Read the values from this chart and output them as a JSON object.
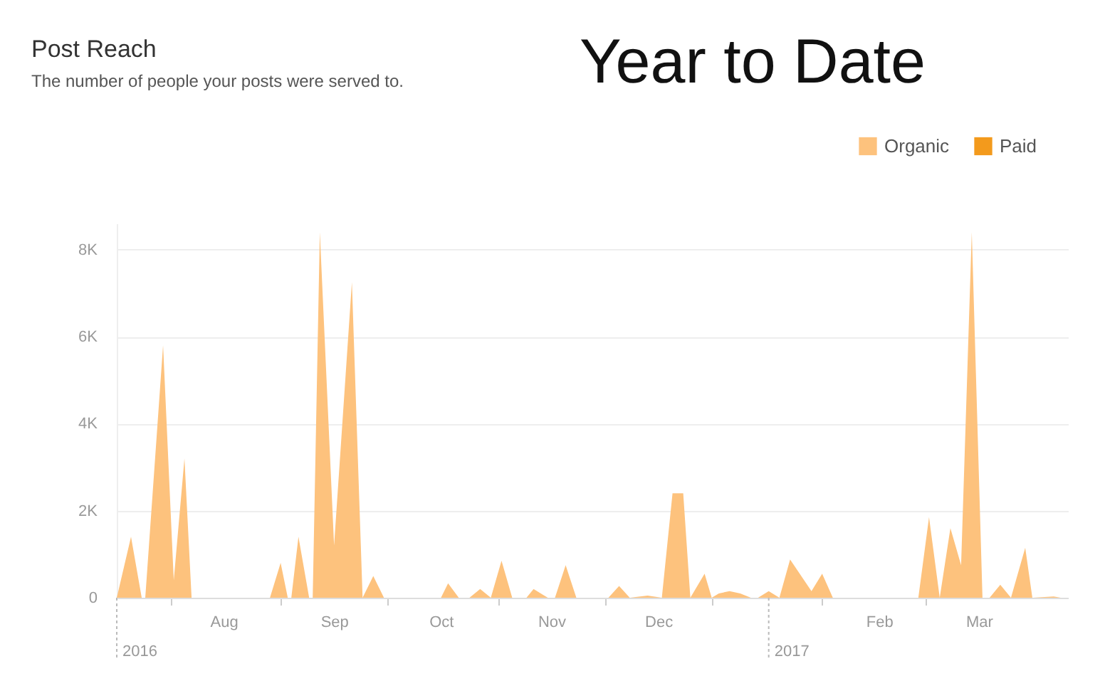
{
  "chart_data": {
    "type": "area",
    "title": "Post Reach",
    "subtitle": "The number of people your posts were served to.",
    "annotations": [
      "Year to Date"
    ],
    "x": [
      "2016-07-02",
      "2016-07-06",
      "2016-07-09",
      "2016-07-10",
      "2016-07-15",
      "2016-07-18",
      "2016-07-21",
      "2016-07-23",
      "2016-08-14",
      "2016-08-17",
      "2016-08-19",
      "2016-08-20",
      "2016-08-22",
      "2016-08-25",
      "2016-08-26",
      "2016-08-28",
      "2016-09-01",
      "2016-09-06",
      "2016-09-09",
      "2016-09-12",
      "2016-09-15",
      "2016-10-01",
      "2016-10-03",
      "2016-10-06",
      "2016-10-09",
      "2016-10-12",
      "2016-10-15",
      "2016-10-18",
      "2016-10-21",
      "2016-10-25",
      "2016-10-27",
      "2016-10-31",
      "2016-11-02",
      "2016-11-05",
      "2016-11-08",
      "2016-11-17",
      "2016-11-20",
      "2016-11-23",
      "2016-11-28",
      "2016-12-02",
      "2016-12-05",
      "2016-12-08",
      "2016-12-10",
      "2016-12-14",
      "2016-12-16",
      "2016-12-18",
      "2016-12-21",
      "2016-12-24",
      "2016-12-27",
      "2016-12-29",
      "2017-01-01",
      "2017-01-04",
      "2017-01-07",
      "2017-01-13",
      "2017-01-16",
      "2017-01-19",
      "2017-02-12",
      "2017-02-15",
      "2017-02-18",
      "2017-02-21",
      "2017-02-24",
      "2017-02-27",
      "2017-03-02",
      "2017-03-04",
      "2017-03-07",
      "2017-03-10",
      "2017-03-14",
      "2017-03-16",
      "2017-03-22",
      "2017-03-24"
    ],
    "series": [
      {
        "name": "Organic",
        "color": "#fdc27d",
        "values": [
          0,
          1400,
          0,
          0,
          5800,
          400,
          3200,
          0,
          0,
          800,
          0,
          0,
          1400,
          0,
          0,
          8400,
          1200,
          7250,
          0,
          500,
          0,
          0,
          330,
          0,
          0,
          200,
          0,
          850,
          0,
          0,
          200,
          0,
          0,
          750,
          0,
          0,
          270,
          0,
          50,
          0,
          2400,
          2400,
          0,
          550,
          0,
          100,
          150,
          100,
          0,
          0,
          150,
          0,
          880,
          150,
          550,
          0,
          0,
          1850,
          0,
          1600,
          750,
          8400,
          0,
          0,
          300,
          0,
          1150,
          0,
          30,
          0
        ]
      },
      {
        "name": "Paid",
        "color": "#f39a1c",
        "values": [
          null,
          null,
          null,
          null,
          null,
          null,
          null,
          null,
          null,
          null,
          null,
          null,
          null,
          null,
          null,
          null,
          null,
          null,
          null,
          null,
          null,
          null,
          null,
          null,
          null,
          null,
          null,
          null,
          null,
          null,
          null,
          null,
          null,
          null,
          null,
          null,
          null,
          null,
          null,
          null,
          null,
          null,
          null,
          null,
          null,
          null,
          null,
          null,
          null,
          null,
          null,
          null,
          null,
          null,
          null,
          null,
          null,
          null,
          null,
          null,
          null,
          null,
          null,
          null,
          null,
          null,
          null,
          null,
          null,
          null
        ]
      }
    ],
    "xlim": [
      "2016-07-02",
      "2017-03-26"
    ],
    "xticks": [
      {
        "value": "2016-07-17",
        "label": null
      },
      {
        "value": "2016-08-01",
        "label": "Aug"
      },
      {
        "value": "2016-08-17",
        "label": null
      },
      {
        "value": "2016-09-01",
        "label": "Sep"
      },
      {
        "value": "2016-09-16",
        "label": null
      },
      {
        "value": "2016-10-01",
        "label": "Oct"
      },
      {
        "value": "2016-10-17",
        "label": null
      },
      {
        "value": "2016-11-01",
        "label": "Nov"
      },
      {
        "value": "2016-11-16",
        "label": null
      },
      {
        "value": "2016-12-01",
        "label": "Dec"
      },
      {
        "value": "2016-12-16",
        "label": null
      },
      {
        "value": "2017-01-16",
        "label": null
      },
      {
        "value": "2017-02-01",
        "label": "Feb"
      },
      {
        "value": "2017-02-14",
        "label": null
      },
      {
        "value": "2017-03-01",
        "label": "Mar"
      }
    ],
    "ylim": [
      0,
      8600
    ],
    "yticks": [
      0,
      {
        "value": 2000,
        "label": "2K"
      },
      {
        "value": 4000,
        "label": "4K"
      },
      {
        "value": 6000,
        "label": "6K"
      },
      {
        "value": 8000,
        "label": "8K"
      }
    ],
    "ref_lines": [
      {
        "axis": "x",
        "value": "2016-07-02",
        "label": "2016",
        "line_style": "dotted",
        "color": "#bbbbbb"
      },
      {
        "axis": "x",
        "value": "2017-01-01",
        "label": "2017",
        "line_style": "dotted",
        "color": "#bbbbbb"
      }
    ],
    "grid": "y",
    "legend": "top right"
  }
}
